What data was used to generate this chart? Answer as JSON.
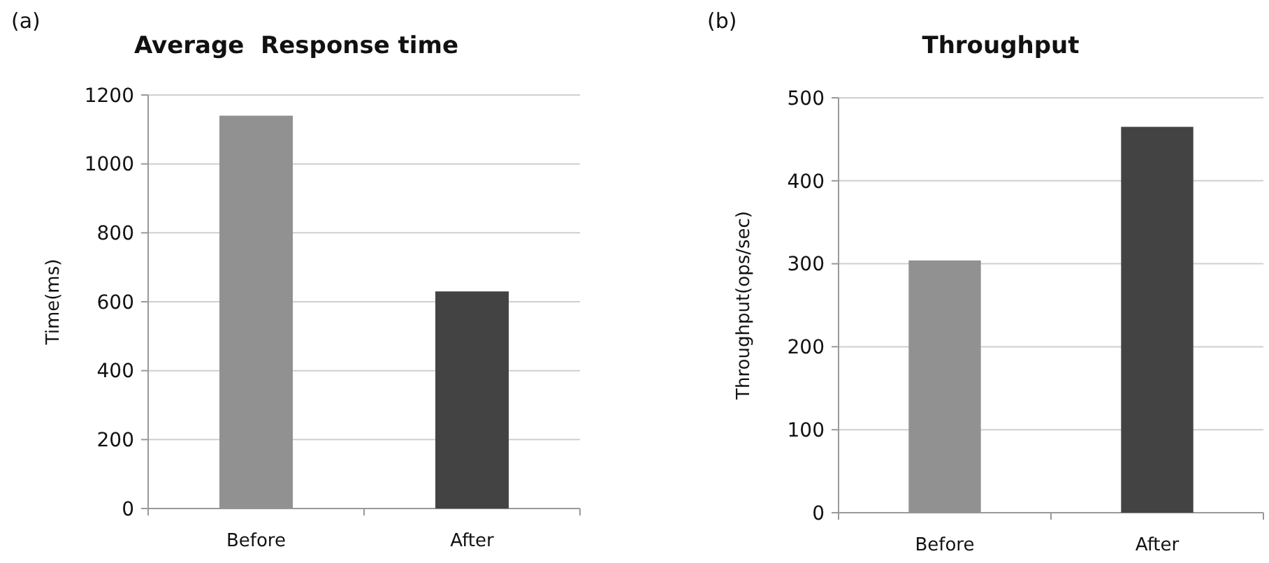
{
  "chart_data": [
    {
      "type": "bar",
      "title": "Average  Response time",
      "ylabel": "Time(ms)",
      "annotations": [
        "(a)"
      ],
      "categories": [
        "Before",
        "After"
      ],
      "values": [
        1140,
        630
      ],
      "colors": [
        "#919191",
        "#434343"
      ],
      "ylim": [
        0,
        1200
      ],
      "yticks": [
        0,
        200,
        400,
        600,
        800,
        1000,
        1200
      ],
      "grid": "y"
    },
    {
      "type": "bar",
      "title": "Throughput",
      "ylabel": "Throughput(ops/sec)",
      "annotations": [
        "(b)"
      ],
      "categories": [
        "Before",
        "After"
      ],
      "values": [
        304,
        465
      ],
      "colors": [
        "#919191",
        "#434343"
      ],
      "ylim": [
        0,
        500
      ],
      "yticks": [
        0,
        100,
        200,
        300,
        400,
        500
      ],
      "grid": "y"
    }
  ]
}
